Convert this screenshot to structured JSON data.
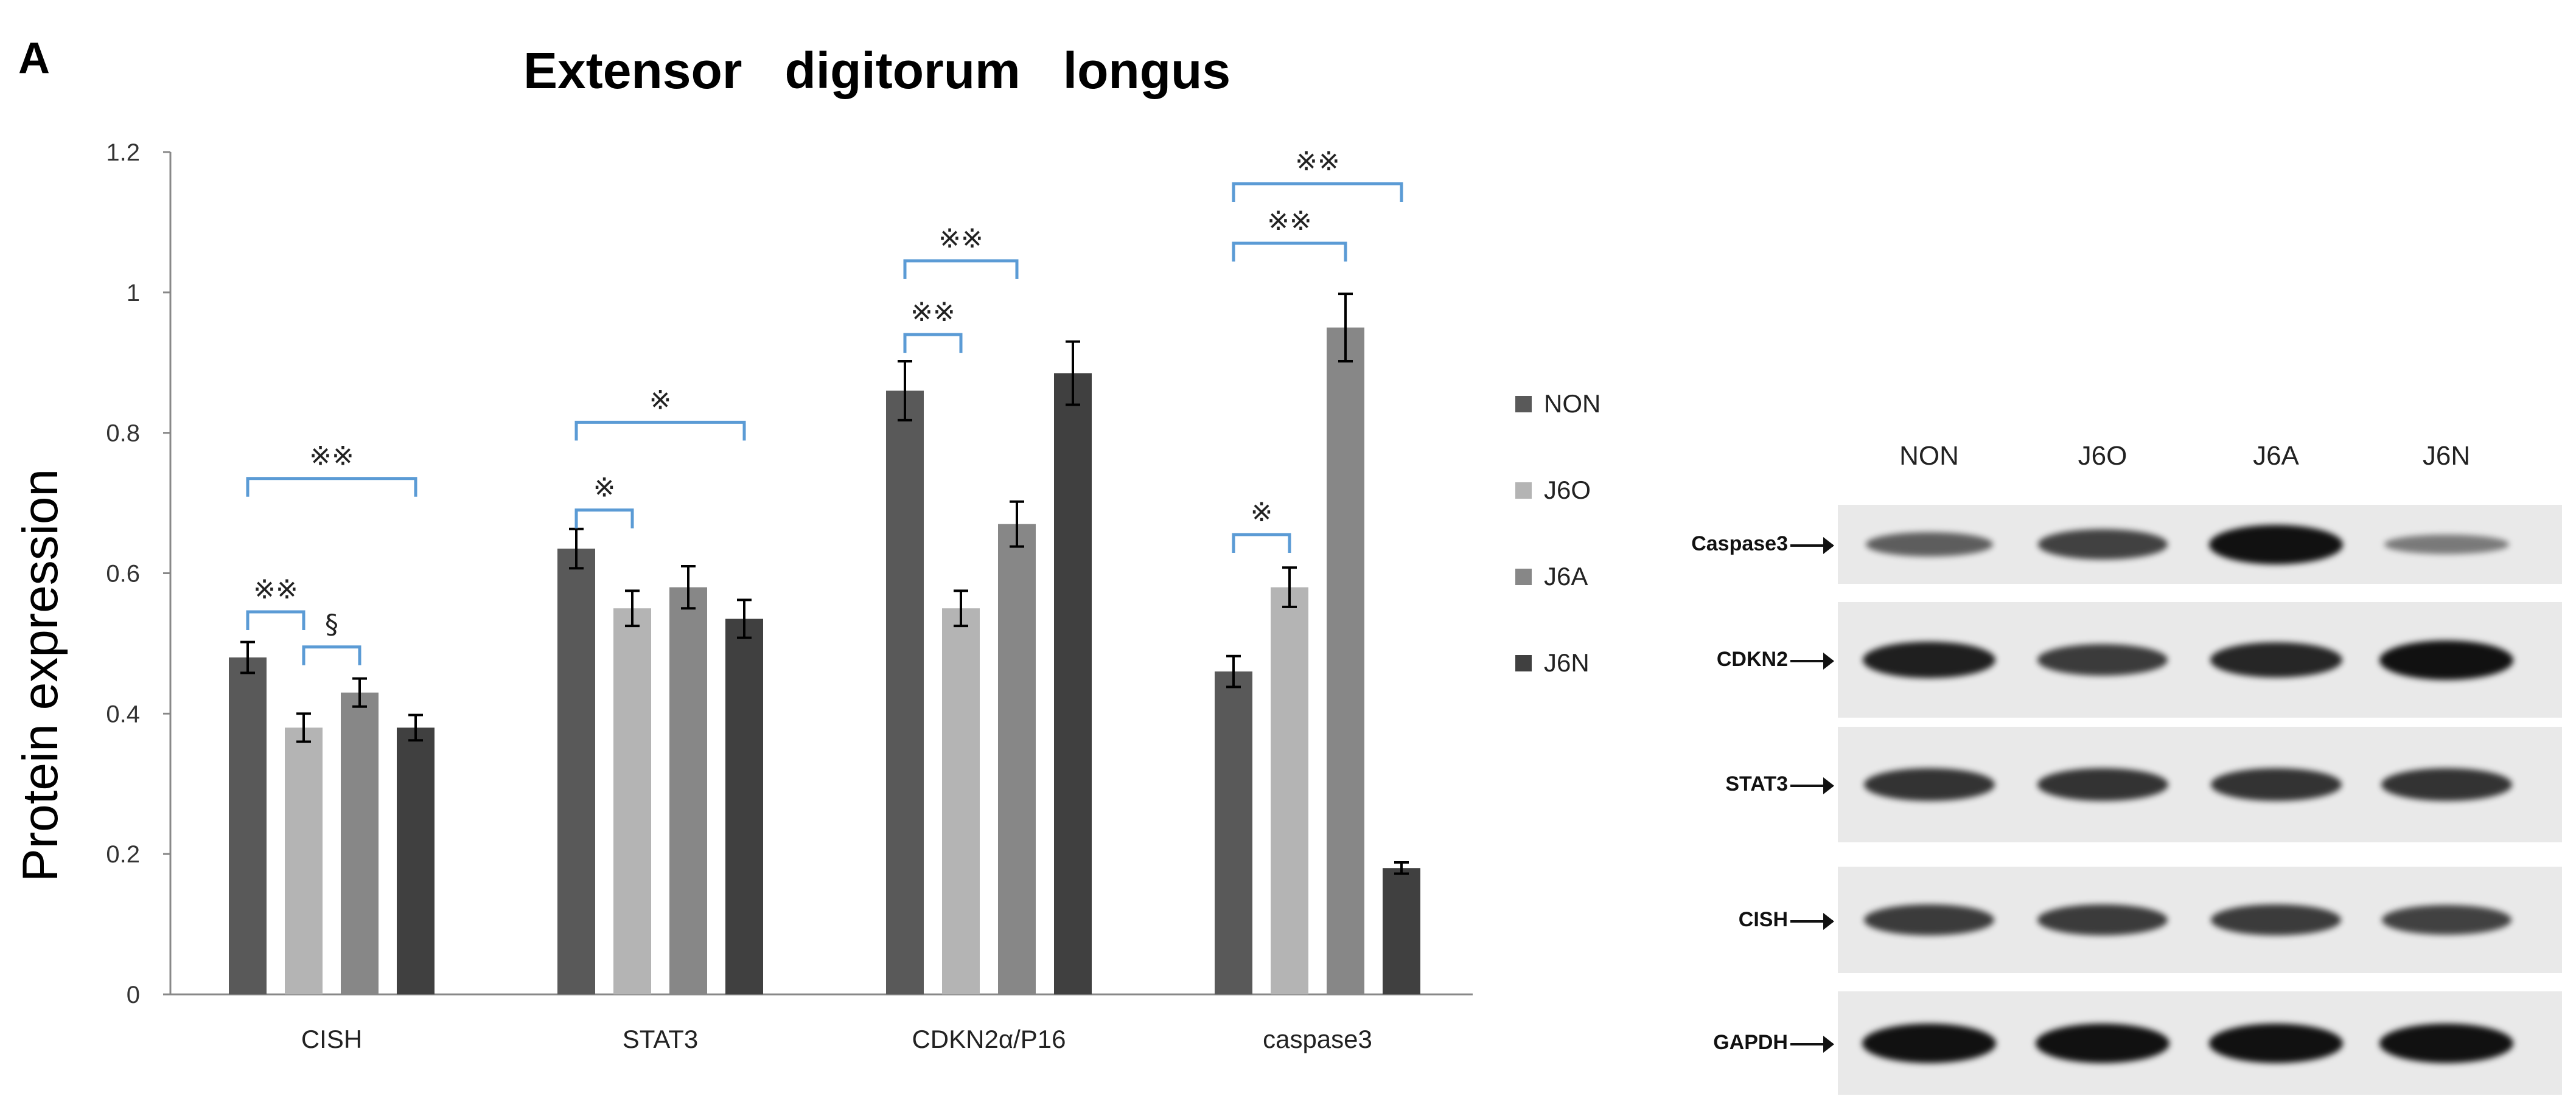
{
  "panel_letter": "A",
  "chart_data": {
    "type": "bar",
    "title": "Extensor   digitorum   longus",
    "xlabel": "",
    "ylabel": "Protein expression",
    "ylim": [
      0,
      1.2
    ],
    "yticks": [
      "0",
      "0.2",
      "0.4",
      "0.6",
      "0.8",
      "1",
      "1.2"
    ],
    "ytick_values": [
      0,
      0.2,
      0.4,
      0.6,
      0.8,
      1.0,
      1.2
    ],
    "grid": false,
    "legend_position": "right",
    "categories": [
      "CISH",
      "STAT3",
      "CDKN2α/P16",
      "caspase3"
    ],
    "series": [
      {
        "name": "NON",
        "color": "#595959",
        "values": [
          0.48,
          0.635,
          0.86,
          0.46
        ],
        "errors": [
          0.022,
          0.028,
          0.042,
          0.022
        ]
      },
      {
        "name": "J6O",
        "color": "#b4b4b4",
        "values": [
          0.38,
          0.55,
          0.55,
          0.58
        ],
        "errors": [
          0.02,
          0.025,
          0.025,
          0.028
        ]
      },
      {
        "name": "J6A",
        "color": "#878787",
        "values": [
          0.43,
          0.58,
          0.67,
          0.95
        ],
        "errors": [
          0.02,
          0.03,
          0.032,
          0.048
        ]
      },
      {
        "name": "J6N",
        "color": "#404040",
        "values": [
          0.38,
          0.535,
          0.885,
          0.18
        ],
        "errors": [
          0.018,
          0.027,
          0.045,
          0.008
        ]
      }
    ],
    "significance": [
      {
        "category": 0,
        "from": 0,
        "to": 3,
        "level": 0.735,
        "label": "※※"
      },
      {
        "category": 0,
        "from": 0,
        "to": 1,
        "level": 0.545,
        "label": "※※"
      },
      {
        "category": 0,
        "from": 1,
        "to": 2,
        "level": 0.495,
        "label": "§"
      },
      {
        "category": 1,
        "from": 0,
        "to": 3,
        "level": 0.815,
        "label": "※"
      },
      {
        "category": 1,
        "from": 0,
        "to": 1,
        "level": 0.69,
        "label": "※"
      },
      {
        "category": 2,
        "from": 0,
        "to": 2,
        "level": 1.045,
        "label": "※※"
      },
      {
        "category": 2,
        "from": 0,
        "to": 1,
        "level": 0.94,
        "label": "※※"
      },
      {
        "category": 3,
        "from": 0,
        "to": 3,
        "level": 1.155,
        "label": "※※"
      },
      {
        "category": 3,
        "from": 0,
        "to": 2,
        "level": 1.07,
        "label": "※※"
      },
      {
        "category": 3,
        "from": 0,
        "to": 1,
        "level": 0.655,
        "label": "※"
      }
    ],
    "bracket_color": "#5b9bd5"
  },
  "blot": {
    "lanes": [
      "NON",
      "J6O",
      "J6A",
      "J6N"
    ],
    "rows": [
      {
        "label": "Caspase3",
        "intensities": [
          0.45,
          0.65,
          1.0,
          0.25
        ]
      },
      {
        "label": "CDKN2",
        "intensities": [
          0.9,
          0.7,
          0.85,
          1.0
        ]
      },
      {
        "label": "STAT3",
        "intensities": [
          0.75,
          0.75,
          0.75,
          0.75
        ]
      },
      {
        "label": "CISH",
        "intensities": [
          0.7,
          0.7,
          0.7,
          0.65
        ]
      },
      {
        "label": "GAPDH",
        "intensities": [
          1.0,
          1.0,
          1.0,
          1.0
        ]
      }
    ]
  }
}
